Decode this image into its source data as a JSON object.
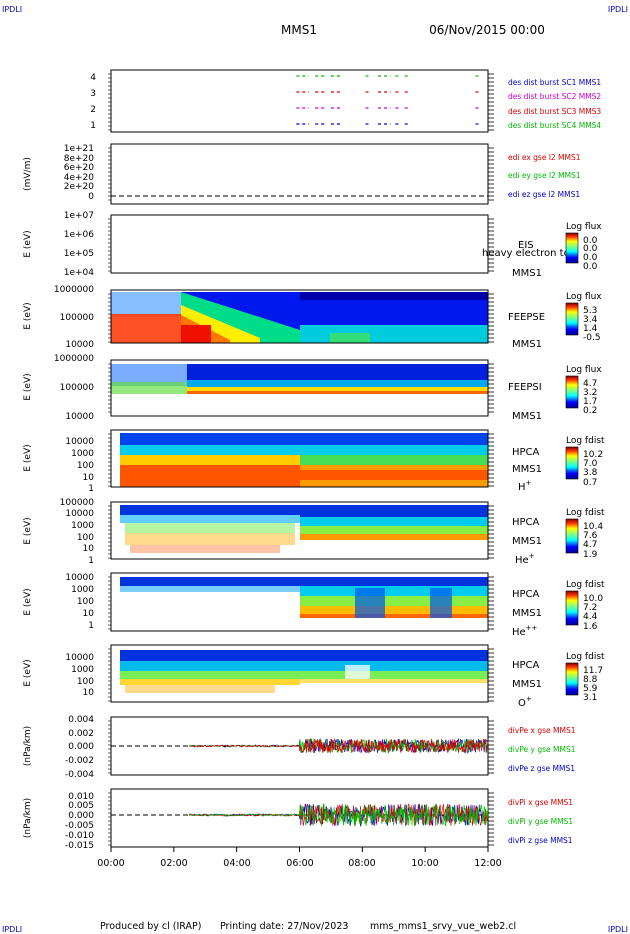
{
  "header": {
    "corner_label": "IPDLI",
    "mission": "MMS1",
    "date": "06/Nov/2015 00:00"
  },
  "footer": {
    "credit": "Produced by cl (IRAP)",
    "printing": "Printing date: 27/Nov/2023",
    "script": "mms_mms1_srvy_vue_web2.cl"
  },
  "time_axis": {
    "ticks": [
      "00:00",
      "02:00",
      "04:00",
      "06:00",
      "08:00",
      "10:00",
      "12:00"
    ],
    "range_hours": [
      0,
      12
    ]
  },
  "colors": {
    "blue": "#0000cc",
    "magenta": "#cc00cc",
    "red": "#dd0000",
    "green": "#00bb00"
  },
  "chart_data": [
    {
      "type": "scatter",
      "panel": "burst",
      "yticks": [
        "4",
        "3",
        "2",
        "1"
      ],
      "legend": [
        {
          "text": "des dist burst SC1 MMS1",
          "color": "#0000cc"
        },
        {
          "text": "des dist burst SC2 MMS2",
          "color": "#cc00cc"
        },
        {
          "text": "des dist burst SC3 MMS3",
          "color": "#dd0000"
        },
        {
          "text": "des dist burst SC4 MMS4",
          "color": "#00bb00"
        }
      ],
      "intervals_hours": [
        [
          5.9,
          6.3
        ],
        [
          6.5,
          6.8
        ],
        [
          7.0,
          7.3
        ],
        [
          8.1,
          8.25
        ],
        [
          8.5,
          8.9
        ],
        [
          9.05,
          9.2
        ],
        [
          9.35,
          9.5
        ],
        [
          11.6,
          11.7
        ]
      ]
    },
    {
      "type": "line",
      "panel": "edi",
      "ylabel": "(mV/m)",
      "yticks": [
        "1e+21",
        "8e+20",
        "6e+20",
        "4e+20",
        "2e+20",
        "0"
      ],
      "legend": [
        {
          "text": "edi ex gse l2 MMS1",
          "color": "#dd0000"
        },
        {
          "text": "edi ey gse l2 MMS1",
          "color": "#00bb00"
        },
        {
          "text": "edi ez gse l2 MMS1",
          "color": "#0000cc"
        }
      ]
    },
    {
      "type": "heatmap",
      "panel": "eis",
      "ylabel": "E (eV)",
      "yticks": [
        "1e+07",
        "1e+06",
        "1e+05",
        "1e+04"
      ],
      "side_labels": [
        "EIS",
        "MMS1"
      ],
      "overlay_text": "heavy electron to",
      "colorbar_title": "Log flux",
      "colorbar_ticks": [
        "0.0",
        "0.0",
        "0.0",
        "0.0"
      ]
    },
    {
      "type": "heatmap",
      "panel": "feepse",
      "ylabel": "E (eV)",
      "yticks": [
        "1000000",
        "100000",
        "10000"
      ],
      "side_labels": [
        "FEEPSE",
        "MMS1"
      ],
      "colorbar_title": "Log flux",
      "colorbar_ticks": [
        "5.3",
        "3.4",
        "1.4",
        "-0.5"
      ]
    },
    {
      "type": "heatmap",
      "panel": "feepsi",
      "ylabel": "E (eV)",
      "yticks": [
        "1000000",
        "100000",
        "10000"
      ],
      "side_labels": [
        "FEEPSI",
        "MMS1"
      ],
      "colorbar_title": "Log flux",
      "colorbar_ticks": [
        "4.7",
        "3.2",
        "1.7",
        "0.2"
      ]
    },
    {
      "type": "heatmap",
      "panel": "hpca_h",
      "ylabel": "E (eV)",
      "yticks": [
        "10000",
        "1000",
        "100",
        "10",
        "1"
      ],
      "side_labels": [
        "HPCA",
        "MMS1"
      ],
      "species": "H",
      "species_charge": "+",
      "colorbar_title": "Log fdist",
      "colorbar_ticks": [
        "10.2",
        "7.0",
        "3.8",
        "0.7"
      ]
    },
    {
      "type": "heatmap",
      "panel": "hpca_he",
      "ylabel": "E (eV)",
      "yticks": [
        "100000",
        "10000",
        "1000",
        "100",
        "10",
        "1"
      ],
      "side_labels": [
        "HPCA",
        "MMS1"
      ],
      "species": "He",
      "species_charge": "+",
      "colorbar_title": "Log fdist",
      "colorbar_ticks": [
        "10.4",
        "7.6",
        "4.7",
        "1.9"
      ]
    },
    {
      "type": "heatmap",
      "panel": "hpca_hepp",
      "ylabel": "E (eV)",
      "yticks": [
        "10000",
        "1000",
        "100",
        "10",
        "1"
      ],
      "side_labels": [
        "HPCA",
        "MMS1"
      ],
      "species": "He",
      "species_charge": "++",
      "colorbar_title": "Log fdist",
      "colorbar_ticks": [
        "10.0",
        "7.2",
        "4.4",
        "1.6"
      ]
    },
    {
      "type": "heatmap",
      "panel": "hpca_o",
      "ylabel": "E (eV)",
      "yticks": [
        "10000",
        "1000",
        "100",
        "10"
      ],
      "side_labels": [
        "HPCA",
        "MMS1"
      ],
      "species": "O",
      "species_charge": "+",
      "colorbar_title": "Log fdist",
      "colorbar_ticks": [
        "11.7",
        "8.8",
        "5.9",
        "3.1"
      ]
    },
    {
      "type": "line",
      "panel": "divpe",
      "ylabel": "(nPa/km)",
      "yticks": [
        "0.004",
        "0.002",
        "0.000",
        "-0.002",
        "-0.004"
      ],
      "ylim": [
        -0.004,
        0.004
      ],
      "legend": [
        {
          "text": "divPe x gse MMS1",
          "color": "#dd0000"
        },
        {
          "text": "divPe y gse MMS1",
          "color": "#00bb00"
        },
        {
          "text": "divPe z gse MMS1",
          "color": "#0000cc"
        }
      ]
    },
    {
      "type": "line",
      "panel": "divpi",
      "ylabel": "(nPa/km)",
      "yticks": [
        "0.010",
        "0.005",
        "0.000",
        "-0.005",
        "-0.010",
        "-0.015"
      ],
      "ylim": [
        -0.015,
        0.01
      ],
      "legend": [
        {
          "text": "divPi x gse MMS1",
          "color": "#dd0000"
        },
        {
          "text": "divPi y gse MMS1",
          "color": "#00bb00"
        },
        {
          "text": "divPi z gse MMS1",
          "color": "#0000cc"
        }
      ]
    }
  ]
}
